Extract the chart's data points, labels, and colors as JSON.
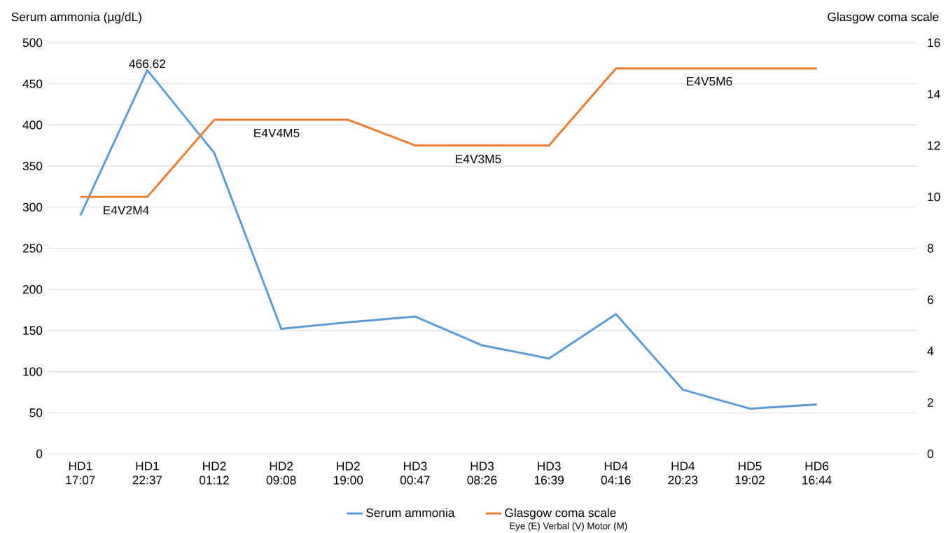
{
  "chart_data": {
    "type": "line",
    "ylabel": "Serum ammonia (µg/dL)",
    "y2label": "Glasgow coma scale",
    "categories": [
      "HD1 17:07",
      "HD1 22:37",
      "HD2 01:12",
      "HD2 09:08",
      "HD2 19:00",
      "HD3 00:47",
      "HD3 08:26",
      "HD3 16:39",
      "HD4 04:16",
      "HD4 20:23",
      "HD5 19:02",
      "HD6 16:44",
      null
    ],
    "series": [
      {
        "name": "Serum ammonia",
        "color": "#5b9bd5",
        "values": [
          290,
          466.62,
          366,
          152,
          160,
          167,
          132,
          116,
          170,
          78,
          55,
          60,
          null
        ],
        "value_labels": [
          null,
          "466.62",
          null,
          null,
          null,
          null,
          null,
          null,
          null,
          null,
          null,
          null,
          null
        ]
      },
      {
        "name": "Glasgow coma scale",
        "color": "#ed7d31",
        "axis": "y2",
        "values": [
          10,
          10,
          13,
          13,
          13,
          12,
          12,
          12,
          15,
          15,
          15,
          15,
          null
        ]
      }
    ],
    "ylim": [
      0,
      500
    ],
    "yticks": [
      0,
      50,
      100,
      150,
      200,
      250,
      300,
      350,
      400,
      450,
      500
    ],
    "y2lim": [
      0,
      16
    ],
    "y2ticks": [
      0,
      2,
      4,
      6,
      8,
      10,
      12,
      14,
      16
    ],
    "annotations": [
      "E4V2M4",
      "E4V4M5",
      "E4V3M5",
      "E4V5M6",
      "Eye (E) Verbal (V) Motor (M)"
    ],
    "grid": "y",
    "legend": "bottom",
    "marker": "none",
    "line_style": "solid"
  }
}
